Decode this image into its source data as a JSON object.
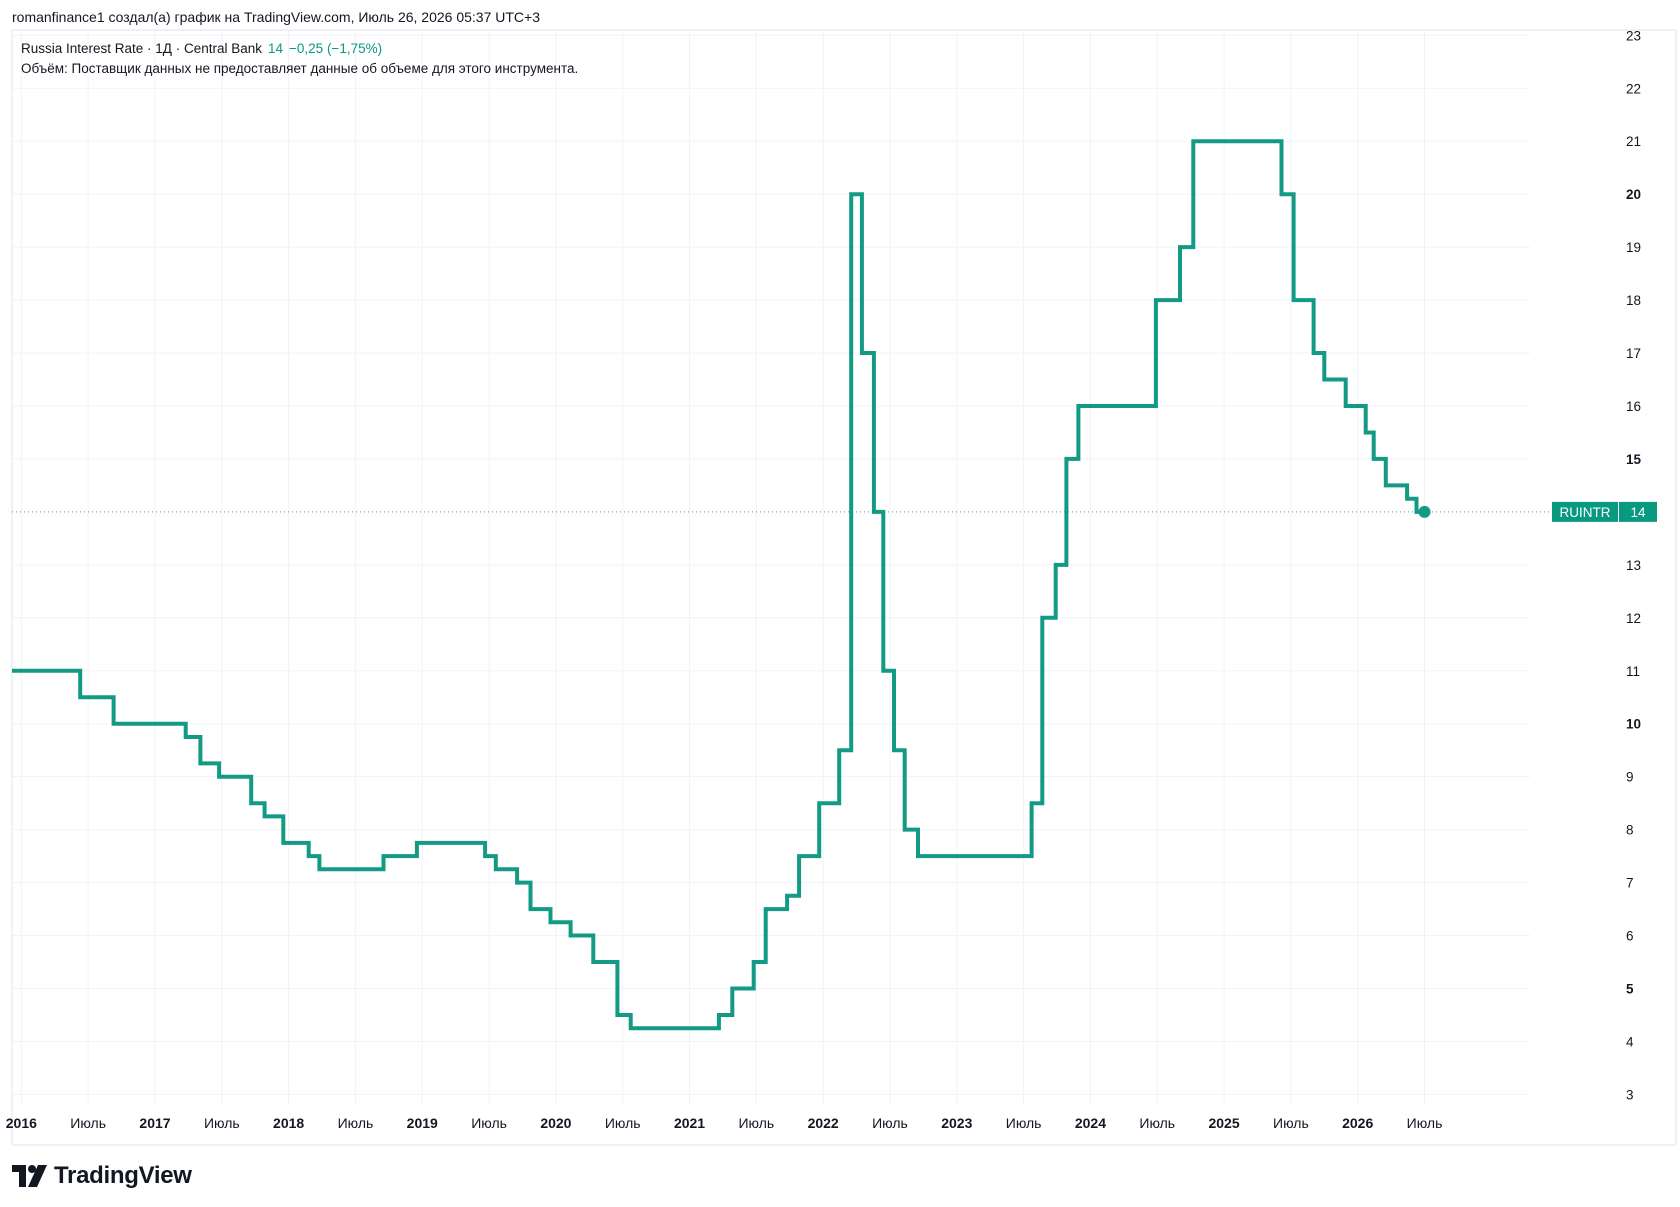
{
  "header": {
    "attribution": "romanfinance1 создал(а) график на TradingView.com, Июль 26, 2026 05:37 UTC+3"
  },
  "legend": {
    "symbol_line": "Russia Interest Rate · 1Д · Central Bank",
    "value": "14",
    "change": "−0,25 (−1,75%)",
    "volume_note": "Объём: Поставщик данных не предоставляет данные об объеме для этого инструмента."
  },
  "price_tag": {
    "ticker": "RUINTR",
    "value": "14"
  },
  "logo": {
    "text": "TradingView"
  },
  "colors": {
    "line": "#129a85",
    "tag_bg": "#089981",
    "grid": "#f0f3fa",
    "text": "#131722"
  },
  "chart_data": {
    "type": "line",
    "step": true,
    "x_unit": "year",
    "xlim": [
      2015.93,
      2026.99
    ],
    "ylim": [
      2.8,
      23.1
    ],
    "y_ticks": [
      {
        "value": 3,
        "label": "3",
        "bold": false
      },
      {
        "value": 4,
        "label": "4",
        "bold": false
      },
      {
        "value": 5,
        "label": "5",
        "bold": true
      },
      {
        "value": 6,
        "label": "6",
        "bold": false
      },
      {
        "value": 7,
        "label": "7",
        "bold": false
      },
      {
        "value": 8,
        "label": "8",
        "bold": false
      },
      {
        "value": 9,
        "label": "9",
        "bold": false
      },
      {
        "value": 10,
        "label": "10",
        "bold": true
      },
      {
        "value": 11,
        "label": "11",
        "bold": false
      },
      {
        "value": 12,
        "label": "12",
        "bold": false
      },
      {
        "value": 13,
        "label": "13",
        "bold": false
      },
      {
        "value": 15,
        "label": "15",
        "bold": true
      },
      {
        "value": 16,
        "label": "16",
        "bold": false
      },
      {
        "value": 17,
        "label": "17",
        "bold": false
      },
      {
        "value": 18,
        "label": "18",
        "bold": false
      },
      {
        "value": 19,
        "label": "19",
        "bold": false
      },
      {
        "value": 20,
        "label": "20",
        "bold": true
      },
      {
        "value": 21,
        "label": "21",
        "bold": false
      },
      {
        "value": 22,
        "label": "22",
        "bold": false
      },
      {
        "value": 23,
        "label": "23",
        "bold": false
      }
    ],
    "x_ticks": [
      {
        "value": 2016.0,
        "label": "2016",
        "bold": true
      },
      {
        "value": 2016.5,
        "label": "Июль",
        "bold": false
      },
      {
        "value": 2017.0,
        "label": "2017",
        "bold": true
      },
      {
        "value": 2017.5,
        "label": "Июль",
        "bold": false
      },
      {
        "value": 2018.0,
        "label": "2018",
        "bold": true
      },
      {
        "value": 2018.5,
        "label": "Июль",
        "bold": false
      },
      {
        "value": 2019.0,
        "label": "2019",
        "bold": true
      },
      {
        "value": 2019.5,
        "label": "Июль",
        "bold": false
      },
      {
        "value": 2020.0,
        "label": "2020",
        "bold": true
      },
      {
        "value": 2020.5,
        "label": "Июль",
        "bold": false
      },
      {
        "value": 2021.0,
        "label": "2021",
        "bold": true
      },
      {
        "value": 2021.5,
        "label": "Июль",
        "bold": false
      },
      {
        "value": 2022.0,
        "label": "2022",
        "bold": true
      },
      {
        "value": 2022.5,
        "label": "Июль",
        "bold": false
      },
      {
        "value": 2023.0,
        "label": "2023",
        "bold": true
      },
      {
        "value": 2023.5,
        "label": "Июль",
        "bold": false
      },
      {
        "value": 2024.0,
        "label": "2024",
        "bold": true
      },
      {
        "value": 2024.5,
        "label": "Июль",
        "bold": false
      },
      {
        "value": 2025.0,
        "label": "2025",
        "bold": true
      },
      {
        "value": 2025.5,
        "label": "Июль",
        "bold": false
      },
      {
        "value": 2026.0,
        "label": "2026",
        "bold": true
      },
      {
        "value": 2026.5,
        "label": "Июль",
        "bold": false
      }
    ],
    "reference_line": 14,
    "points": [
      [
        2015.93,
        11.0
      ],
      [
        2016.44,
        10.5
      ],
      [
        2016.69,
        10.0
      ],
      [
        2017.23,
        9.75
      ],
      [
        2017.34,
        9.25
      ],
      [
        2017.48,
        9.0
      ],
      [
        2017.72,
        8.5
      ],
      [
        2017.82,
        8.25
      ],
      [
        2017.96,
        7.75
      ],
      [
        2018.15,
        7.5
      ],
      [
        2018.23,
        7.25
      ],
      [
        2018.71,
        7.5
      ],
      [
        2018.96,
        7.75
      ],
      [
        2019.47,
        7.5
      ],
      [
        2019.55,
        7.25
      ],
      [
        2019.71,
        7.0
      ],
      [
        2019.81,
        6.5
      ],
      [
        2019.96,
        6.25
      ],
      [
        2020.11,
        6.0
      ],
      [
        2020.28,
        5.5
      ],
      [
        2020.46,
        4.5
      ],
      [
        2020.56,
        4.25
      ],
      [
        2021.22,
        4.5
      ],
      [
        2021.32,
        5.0
      ],
      [
        2021.48,
        5.5
      ],
      [
        2021.57,
        6.5
      ],
      [
        2021.73,
        6.75
      ],
      [
        2021.82,
        7.5
      ],
      [
        2021.97,
        8.5
      ],
      [
        2022.12,
        9.5
      ],
      [
        2022.21,
        20.0
      ],
      [
        2022.29,
        17.0
      ],
      [
        2022.38,
        14.0
      ],
      [
        2022.45,
        11.0
      ],
      [
        2022.53,
        9.5
      ],
      [
        2022.61,
        8.0
      ],
      [
        2022.71,
        7.5
      ],
      [
        2023.56,
        8.5
      ],
      [
        2023.64,
        12.0
      ],
      [
        2023.74,
        13.0
      ],
      [
        2023.82,
        15.0
      ],
      [
        2023.91,
        16.0
      ],
      [
        2024.49,
        18.0
      ],
      [
        2024.67,
        19.0
      ],
      [
        2024.77,
        21.0
      ],
      [
        2025.43,
        20.0
      ],
      [
        2025.52,
        18.0
      ],
      [
        2025.67,
        17.0
      ],
      [
        2025.75,
        16.5
      ],
      [
        2025.91,
        16.0
      ],
      [
        2026.06,
        15.5
      ],
      [
        2026.12,
        15.0
      ],
      [
        2026.21,
        14.5
      ],
      [
        2026.37,
        14.25
      ],
      [
        2026.44,
        14.0
      ],
      [
        2026.5,
        14.0
      ]
    ],
    "last_value": 14
  }
}
